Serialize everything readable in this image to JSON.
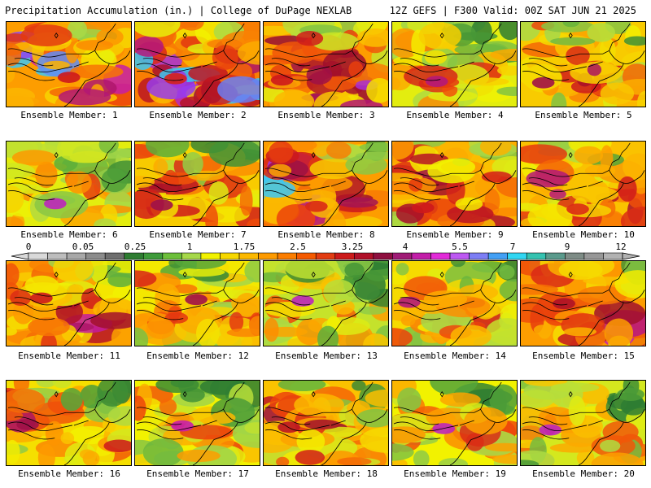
{
  "header": {
    "left_title": "Precipitation Accumulation (in.) | College of DuPage NEXLAB",
    "right_title": "12Z GEFS | F300 Valid: 00Z SAT JUN 21 2025"
  },
  "colorbar": {
    "labels": [
      "0",
      "0.05",
      "0.25",
      "1",
      "1.75",
      "2.5",
      "3.25",
      "4",
      "5.5",
      "7",
      "9",
      "12"
    ],
    "colors": [
      "#d9d9d9",
      "#bdbdbd",
      "#a8a8a8",
      "#8c8c8c",
      "#6e6e6e",
      "#2f7d32",
      "#3e9b3a",
      "#6cbf3a",
      "#a6d84a",
      "#f2f200",
      "#f7d800",
      "#fbb800",
      "#fd9a00",
      "#fb7d00",
      "#f55a00",
      "#e23c12",
      "#cc1a1a",
      "#b01029",
      "#8e0f3f",
      "#a01b76",
      "#c21ea8",
      "#e22bd8",
      "#bd59f2",
      "#7d7ef5",
      "#43a0f5",
      "#31d6f2",
      "#34c2b0",
      "#5a9a8c",
      "#7e8c86",
      "#979797",
      "#b2b2b2"
    ]
  },
  "members": [
    {
      "label": "Ensemble Member: 1",
      "intensity": 0.6,
      "heavy": 0.82
    },
    {
      "label": "Ensemble Member: 2",
      "intensity": 0.65,
      "heavy": 0.8
    },
    {
      "label": "Ensemble Member: 3",
      "intensity": 0.6,
      "heavy": 0.82
    },
    {
      "label": "Ensemble Member: 4",
      "intensity": 0.38,
      "heavy": 0.92
    },
    {
      "label": "Ensemble Member: 5",
      "intensity": 0.48,
      "heavy": 0.9
    },
    {
      "label": "Ensemble Member: 6",
      "intensity": 0.38,
      "heavy": 0.95
    },
    {
      "label": "Ensemble Member: 7",
      "intensity": 0.48,
      "heavy": 0.9
    },
    {
      "label": "Ensemble Member: 8",
      "intensity": 0.6,
      "heavy": 0.78
    },
    {
      "label": "Ensemble Member: 9",
      "intensity": 0.55,
      "heavy": 0.82
    },
    {
      "label": "Ensemble Member: 10",
      "intensity": 0.5,
      "heavy": 0.78
    },
    {
      "label": "Ensemble Member: 11",
      "intensity": 0.58,
      "heavy": 0.82
    },
    {
      "label": "Ensemble Member: 12",
      "intensity": 0.42,
      "heavy": 0.9
    },
    {
      "label": "Ensemble Member: 13",
      "intensity": 0.34,
      "heavy": 0.95
    },
    {
      "label": "Ensemble Member: 14",
      "intensity": 0.45,
      "heavy": 0.92
    },
    {
      "label": "Ensemble Member: 15",
      "intensity": 0.6,
      "heavy": 0.86
    },
    {
      "label": "Ensemble Member: 16",
      "intensity": 0.44,
      "heavy": 0.9
    },
    {
      "label": "Ensemble Member: 17",
      "intensity": 0.4,
      "heavy": 0.94
    },
    {
      "label": "Ensemble Member: 18",
      "intensity": 0.5,
      "heavy": 0.84
    },
    {
      "label": "Ensemble Member: 19",
      "intensity": 0.4,
      "heavy": 0.95
    },
    {
      "label": "Ensemble Member: 20",
      "intensity": 0.36,
      "heavy": 0.95
    }
  ]
}
